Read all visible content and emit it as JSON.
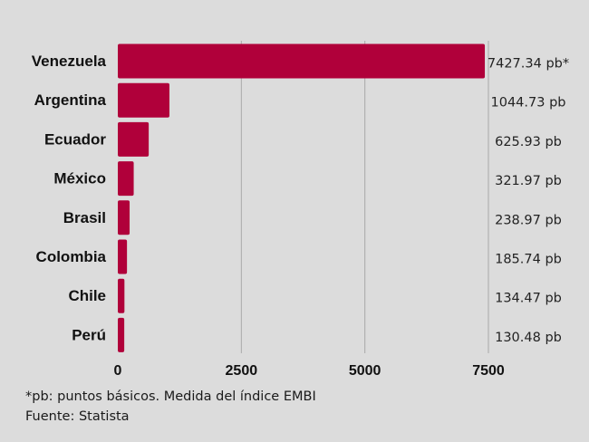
{
  "chart_data": {
    "type": "bar",
    "orientation": "horizontal",
    "categories": [
      "Venezuela",
      "Argentina",
      "Ecuador",
      "México",
      "Brasil",
      "Colombia",
      "Chile",
      "Perú"
    ],
    "values": [
      7427.34,
      1044.73,
      625.93,
      321.97,
      238.97,
      185.74,
      134.47,
      130.48
    ],
    "value_labels": [
      "7427.34 pb*",
      "1044.73 pb",
      "625.93 pb",
      "321.97 pb",
      "238.97 pb",
      "185.74 pb",
      "134.47 pb",
      "130.48 pb"
    ],
    "xticks": [
      0,
      2500,
      5000,
      7500
    ],
    "xtick_labels": [
      "0",
      "2500",
      "5000",
      "7500"
    ],
    "xlim": [
      0,
      7500
    ],
    "grid": "vertical",
    "bar_color": "#b0003a",
    "grid_color": "#a9a9a9"
  },
  "footer": {
    "note": "*pb: puntos básicos. Medida del índice EMBI",
    "source": "Fuente: Statista"
  }
}
